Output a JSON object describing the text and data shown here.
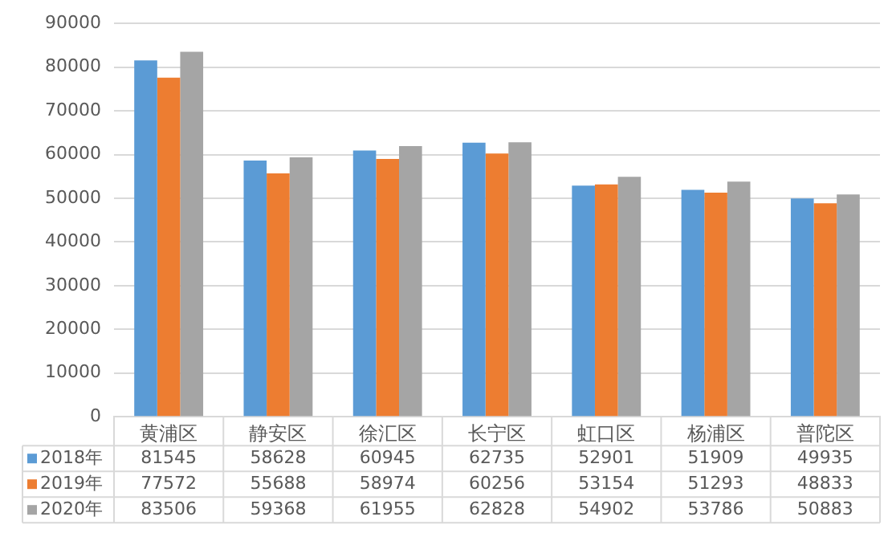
{
  "chart_data": {
    "type": "bar",
    "categories": [
      "黄浦区",
      "静安区",
      "徐汇区",
      "长宁区",
      "虹口区",
      "杨浦区",
      "普陀区"
    ],
    "series": [
      {
        "name": "2018年",
        "color": "#5b9bd5",
        "values": [
          81545,
          58628,
          60945,
          62735,
          52901,
          51909,
          49935
        ]
      },
      {
        "name": "2019年",
        "color": "#ed7d31",
        "values": [
          77572,
          55688,
          58974,
          60256,
          53154,
          51293,
          48833
        ]
      },
      {
        "name": "2020年",
        "color": "#a5a5a5",
        "values": [
          83506,
          59368,
          61955,
          62828,
          54902,
          53786,
          50883
        ]
      }
    ],
    "ylim": [
      0,
      90000
    ],
    "yticks": [
      0,
      10000,
      20000,
      30000,
      40000,
      50000,
      60000,
      70000,
      80000,
      90000
    ],
    "grid": "y",
    "legend": "bottom",
    "data_labels": true
  }
}
